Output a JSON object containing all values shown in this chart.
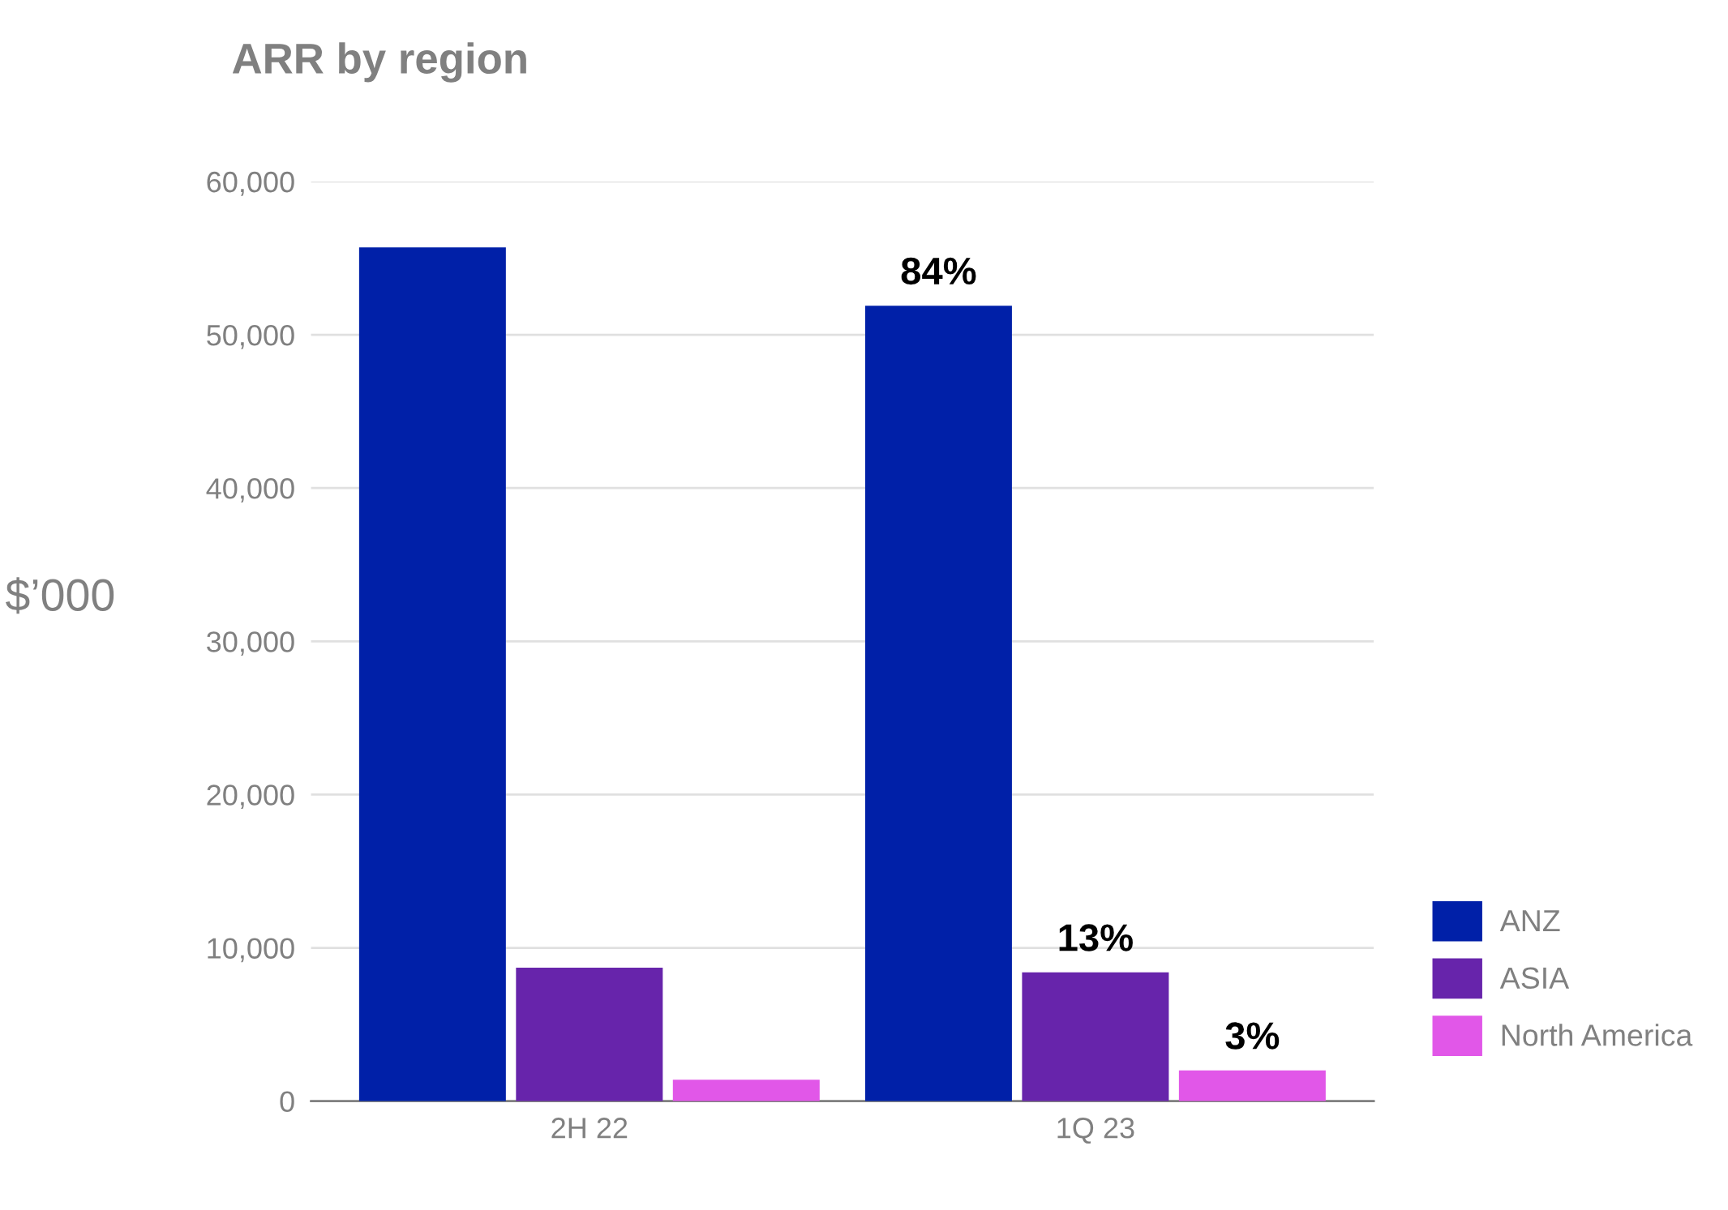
{
  "chart_data": {
    "type": "bar",
    "title": "ARR by region",
    "ylabel": "$’000",
    "categories": [
      "2H 22",
      "1Q 23"
    ],
    "series": [
      {
        "name": "ANZ",
        "color": "#0020a8",
        "values": [
          55700,
          51900
        ]
      },
      {
        "name": "ASIA",
        "color": "#6724ab",
        "values": [
          8700,
          8400
        ]
      },
      {
        "name": "North America",
        "color": "#e157e8",
        "values": [
          1400,
          2000
        ]
      }
    ],
    "annotations": [
      "84%",
      "13%",
      "3%"
    ],
    "ylim": [
      0,
      60000
    ],
    "yticks": [
      {
        "value": 0,
        "label": "0"
      },
      {
        "value": 10000,
        "label": "10,000"
      },
      {
        "value": 20000,
        "label": "20,000"
      },
      {
        "value": 30000,
        "label": "30,000"
      },
      {
        "value": 40000,
        "label": "40,000"
      },
      {
        "value": 50000,
        "label": "50,000"
      },
      {
        "value": 60000,
        "label": "60,000"
      }
    ],
    "grid": "y",
    "legend": "bottom right"
  }
}
